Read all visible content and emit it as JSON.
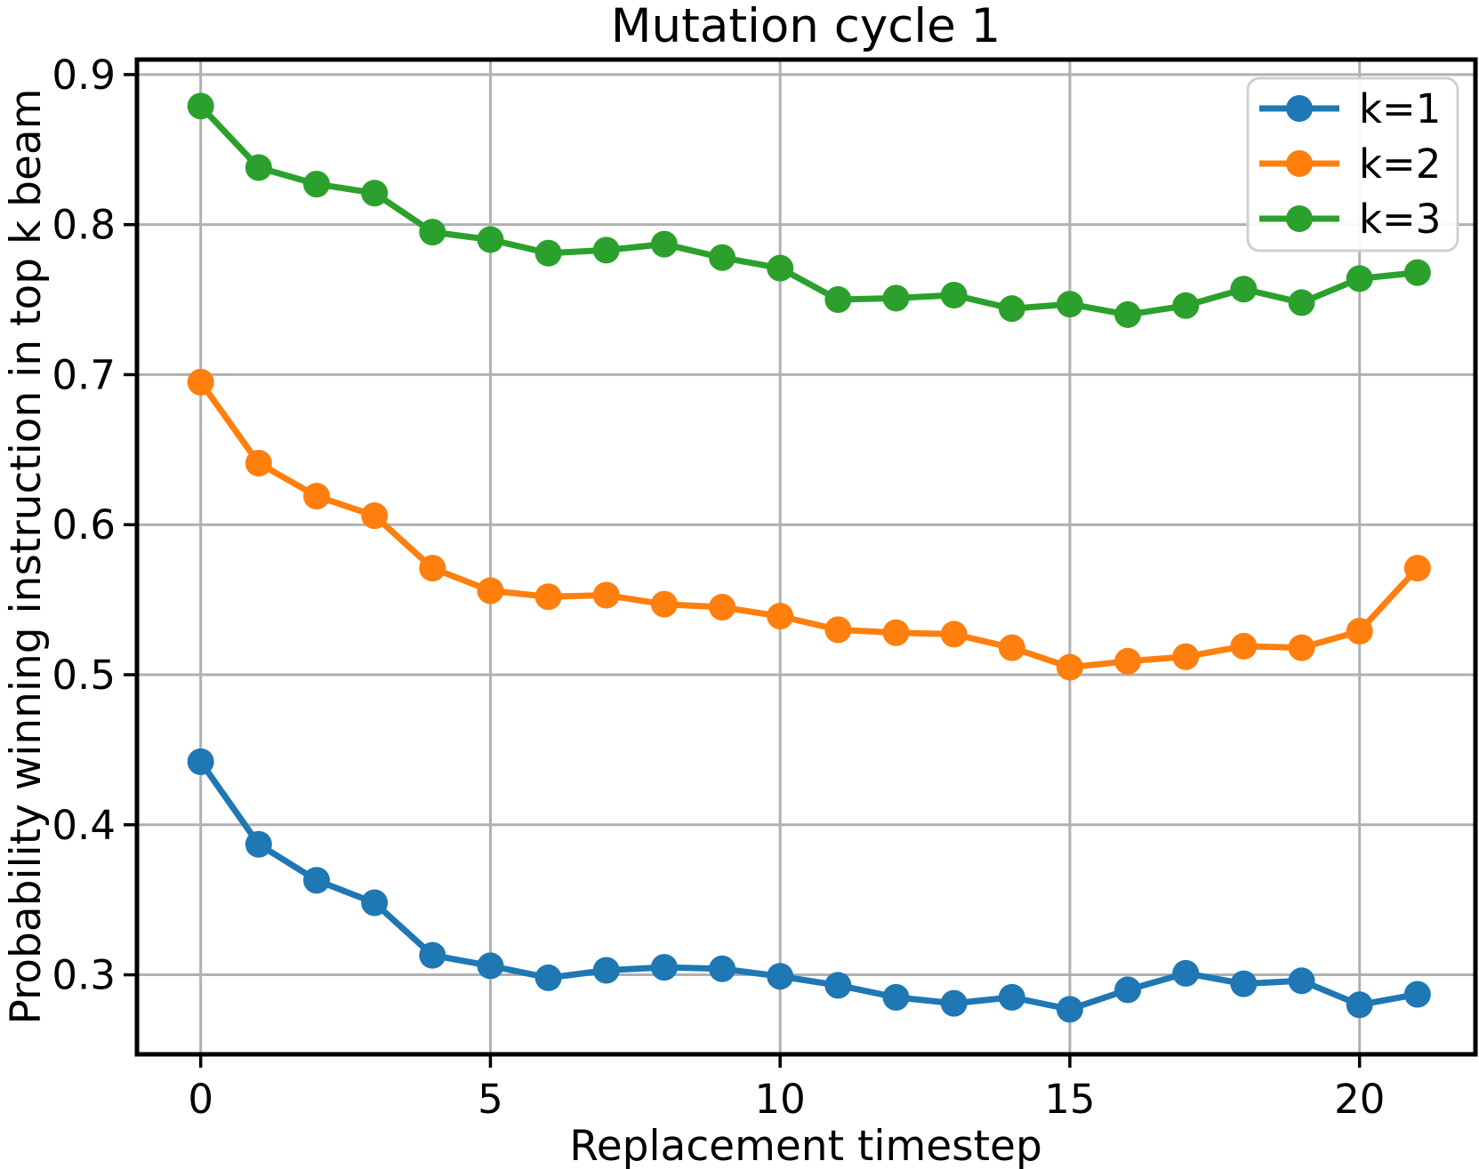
{
  "figure": {
    "background_color": "#ffffff"
  },
  "chart_data": {
    "type": "line",
    "title": "Mutation cycle 1",
    "xlabel": "Replacement timestep",
    "ylabel": "Probability winning instruction in top k beam",
    "x": [
      0,
      1,
      2,
      3,
      4,
      5,
      6,
      7,
      8,
      9,
      10,
      11,
      12,
      13,
      14,
      15,
      16,
      17,
      18,
      19,
      20,
      21
    ],
    "series": [
      {
        "name": "k=1",
        "color": "#1f77b4",
        "values": [
          0.442,
          0.387,
          0.363,
          0.348,
          0.313,
          0.306,
          0.298,
          0.303,
          0.305,
          0.304,
          0.299,
          0.293,
          0.285,
          0.281,
          0.285,
          0.277,
          0.29,
          0.301,
          0.294,
          0.296,
          0.28,
          0.287
        ]
      },
      {
        "name": "k=2",
        "color": "#ff7f0e",
        "values": [
          0.695,
          0.641,
          0.619,
          0.606,
          0.571,
          0.556,
          0.552,
          0.553,
          0.547,
          0.545,
          0.539,
          0.53,
          0.528,
          0.527,
          0.518,
          0.505,
          0.509,
          0.512,
          0.519,
          0.518,
          0.529,
          0.571
        ]
      },
      {
        "name": "k=3",
        "color": "#2ca02c",
        "values": [
          0.879,
          0.838,
          0.827,
          0.821,
          0.795,
          0.79,
          0.781,
          0.783,
          0.787,
          0.778,
          0.771,
          0.75,
          0.751,
          0.753,
          0.744,
          0.747,
          0.74,
          0.746,
          0.757,
          0.748,
          0.764,
          0.768
        ]
      }
    ],
    "xticks": [
      0,
      5,
      10,
      15,
      20
    ],
    "yticks": [
      0.3,
      0.4,
      0.5,
      0.6,
      0.7,
      0.8,
      0.9
    ],
    "xlim": [
      -1.1,
      22.0
    ],
    "ylim": [
      0.247,
      0.91
    ],
    "grid": true,
    "grid_color": "#b0b0b0",
    "spine_color": "#000000",
    "legend": {
      "position": "upper right",
      "entries": [
        "k=1",
        "k=2",
        "k=3"
      ],
      "border_color": "#d0d0d0",
      "background_color": "#ffffff"
    }
  }
}
